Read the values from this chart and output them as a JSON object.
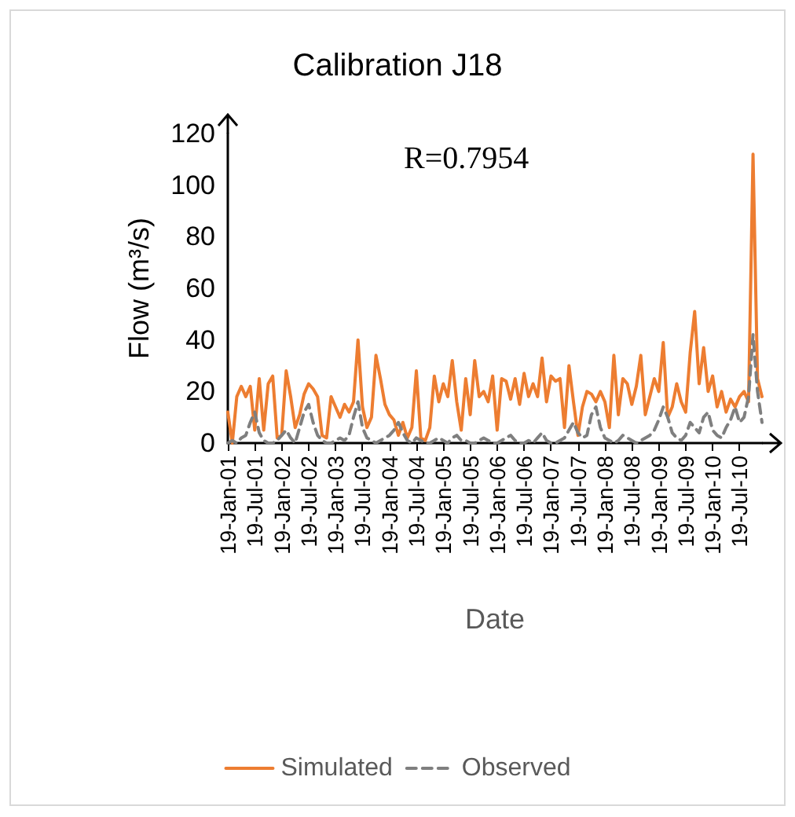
{
  "chart_data": {
    "type": "line",
    "title": "Calibration J18",
    "xlabel": "Date",
    "ylabel": "Flow (m³/s)",
    "annotations": [
      "R=0.7954"
    ],
    "categories": [
      "19-Jan-01",
      null,
      null,
      null,
      null,
      null,
      "19-Jul-01",
      null,
      null,
      null,
      null,
      null,
      "19-Jan-02",
      null,
      null,
      null,
      null,
      null,
      "19-Jul-02",
      null,
      null,
      null,
      null,
      null,
      "19-Jan-03",
      null,
      null,
      null,
      null,
      null,
      "19-Jul-03",
      null,
      null,
      null,
      null,
      null,
      "19-Jan-04",
      null,
      null,
      null,
      null,
      null,
      "19-Jul-04",
      null,
      null,
      null,
      null,
      null,
      "19-Jan-05",
      null,
      null,
      null,
      null,
      null,
      "19-Jul-05",
      null,
      null,
      null,
      null,
      null,
      "19-Jan-06",
      null,
      null,
      null,
      null,
      null,
      "19-Jul-06",
      null,
      null,
      null,
      null,
      null,
      "19-Jan-07",
      null,
      null,
      null,
      null,
      null,
      "19-Jul-07",
      null,
      null,
      null,
      null,
      null,
      "19-Jan-08",
      null,
      null,
      null,
      null,
      null,
      "19-Jul-08",
      null,
      null,
      null,
      null,
      null,
      "19-Jan-09",
      null,
      null,
      null,
      null,
      null,
      "19-Jul-09",
      null,
      null,
      null,
      null,
      null,
      "19-Jan-10",
      null,
      null,
      null,
      null,
      null,
      "19-Jul-10",
      null,
      null,
      null,
      null,
      null
    ],
    "series": [
      {
        "name": "Simulated",
        "color": "#ed7d31",
        "line_style": "solid",
        "values": [
          12,
          0,
          18,
          22,
          18,
          22,
          5,
          25,
          5,
          23,
          26,
          2,
          3,
          28,
          18,
          6,
          11,
          19,
          23,
          21,
          18,
          3,
          2,
          18,
          14,
          10,
          15,
          12,
          16,
          40,
          14,
          6,
          10,
          34,
          25,
          15,
          11,
          9,
          3,
          8,
          2,
          6,
          28,
          2,
          1,
          6,
          26,
          16,
          23,
          18,
          32,
          16,
          5,
          25,
          11,
          32,
          18,
          20,
          16,
          26,
          5,
          25,
          24,
          17,
          25,
          15,
          27,
          18,
          23,
          18,
          33,
          16,
          26,
          24,
          25,
          6,
          30,
          16,
          3,
          14,
          20,
          19,
          16,
          20,
          16,
          6,
          34,
          11,
          25,
          23,
          15,
          22,
          34,
          11,
          18,
          25,
          20,
          39,
          10,
          14,
          23,
          16,
          12,
          35,
          51,
          23,
          37,
          20,
          26,
          14,
          20,
          12,
          17,
          14,
          18,
          20,
          16,
          112,
          25,
          18
        ]
      },
      {
        "name": "Observed",
        "color": "#7f7f7f",
        "line_style": "dashed",
        "values": [
          0,
          1,
          0,
          2,
          3,
          8,
          12,
          4,
          1,
          0,
          0,
          1,
          3,
          5,
          2,
          0,
          6,
          12,
          15,
          8,
          3,
          1,
          0,
          0,
          1,
          2,
          1,
          3,
          10,
          16,
          6,
          2,
          1,
          0,
          1,
          2,
          3,
          5,
          8,
          4,
          1,
          0,
          2,
          1,
          0,
          0,
          1,
          2,
          1,
          0,
          2,
          3,
          1,
          1,
          0,
          0,
          1,
          2,
          1,
          0,
          0,
          1,
          2,
          3,
          1,
          0,
          0,
          1,
          0,
          2,
          4,
          1,
          0,
          0,
          1,
          2,
          5,
          8,
          4,
          2,
          3,
          11,
          14,
          6,
          2,
          1,
          0,
          1,
          3,
          2,
          1,
          0,
          1,
          2,
          3,
          5,
          9,
          14,
          10,
          4,
          2,
          1,
          3,
          8,
          6,
          4,
          10,
          12,
          5,
          3,
          2,
          6,
          9,
          14,
          8,
          10,
          18,
          42,
          20,
          8
        ]
      }
    ],
    "ylim": [
      0,
      120
    ],
    "yticks": [
      0,
      20,
      40,
      60,
      80,
      100,
      120
    ],
    "grid": false,
    "legend": "bottom",
    "marker": "none"
  }
}
